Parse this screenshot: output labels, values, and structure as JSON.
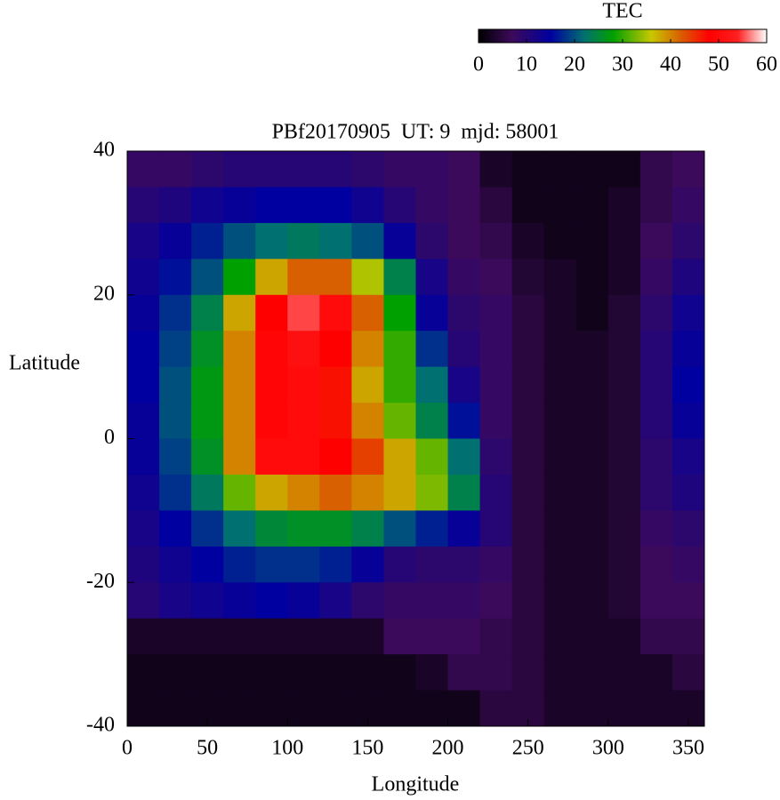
{
  "chart_data": {
    "type": "heatmap",
    "title": "PBf20170905  UT: 9  mjd: 58001",
    "x_label": "Longitude",
    "y_label": "Latitude",
    "colorbar_label": "TEC",
    "x": [
      10,
      30,
      50,
      70,
      90,
      110,
      130,
      150,
      170,
      190,
      210,
      230,
      250,
      270,
      290,
      310,
      330,
      350
    ],
    "y": [
      37.5,
      32.5,
      27.5,
      22.5,
      17.5,
      12.5,
      7.5,
      2.5,
      -2.5,
      -7.5,
      -12.5,
      -17.5,
      -22.5,
      -27.5,
      -32.5,
      -37.5
    ],
    "z": [
      [
        8,
        8,
        9,
        10,
        10,
        10,
        10,
        9,
        8,
        8,
        7,
        3,
        2,
        2,
        2,
        2,
        6,
        7
      ],
      [
        10,
        11,
        13,
        14,
        15,
        15,
        15,
        13,
        10,
        8,
        7,
        5,
        2,
        2,
        2,
        3,
        6,
        8
      ],
      [
        12,
        14,
        17,
        20,
        22,
        23,
        22,
        20,
        14,
        9,
        7,
        6,
        3,
        2,
        2,
        3,
        7,
        9
      ],
      [
        13,
        16,
        20,
        28,
        38,
        42,
        42,
        35,
        24,
        12,
        8,
        7,
        4,
        3,
        2,
        3,
        8,
        11
      ],
      [
        14,
        18,
        24,
        38,
        48,
        55,
        50,
        42,
        28,
        14,
        9,
        8,
        5,
        3,
        2,
        4,
        9,
        13
      ],
      [
        15,
        19,
        26,
        40,
        49,
        51,
        48,
        40,
        30,
        18,
        10,
        8,
        5,
        3,
        3,
        4,
        10,
        14
      ],
      [
        15,
        20,
        27,
        40,
        49,
        50,
        47,
        38,
        30,
        22,
        12,
        8,
        5,
        3,
        3,
        4,
        10,
        15
      ],
      [
        14,
        20,
        27,
        40,
        49,
        50,
        47,
        40,
        32,
        24,
        16,
        8,
        5,
        3,
        3,
        4,
        10,
        14
      ],
      [
        14,
        19,
        26,
        40,
        50,
        50,
        48,
        44,
        38,
        32,
        22,
        9,
        5,
        3,
        3,
        4,
        9,
        12
      ],
      [
        13,
        18,
        23,
        32,
        38,
        40,
        42,
        40,
        38,
        33,
        24,
        10,
        5,
        3,
        3,
        4,
        9,
        11
      ],
      [
        12,
        15,
        18,
        22,
        25,
        26,
        26,
        24,
        20,
        17,
        14,
        10,
        5,
        3,
        3,
        4,
        8,
        9
      ],
      [
        11,
        13,
        15,
        17,
        18,
        18,
        17,
        14,
        10,
        9,
        9,
        8,
        5,
        3,
        3,
        4,
        7,
        8
      ],
      [
        10,
        12,
        13,
        14,
        15,
        14,
        12,
        9,
        8,
        8,
        8,
        7,
        5,
        3,
        3,
        4,
        7,
        7
      ],
      [
        3,
        3,
        3,
        3,
        3,
        3,
        3,
        3,
        7,
        7,
        7,
        6,
        5,
        3,
        3,
        3,
        6,
        6
      ],
      [
        2,
        2,
        2,
        2,
        2,
        2,
        2,
        2,
        2,
        3,
        6,
        6,
        5,
        3,
        3,
        3,
        3,
        5
      ],
      [
        2,
        2,
        2,
        2,
        2,
        2,
        2,
        2,
        2,
        2,
        2,
        5,
        5,
        3,
        3,
        3,
        3,
        3
      ]
    ],
    "xlim": [
      0,
      360
    ],
    "xticks": [
      0,
      50,
      100,
      150,
      200,
      250,
      300,
      350
    ],
    "ylim": [
      -40,
      40
    ],
    "yticks": [
      -40,
      -20,
      0,
      20,
      40
    ],
    "colorbar_lim": [
      0,
      60
    ],
    "colorbar_ticks": [
      0,
      10,
      20,
      30,
      40,
      50,
      60
    ],
    "colorscale": [
      [
        0,
        "#000000"
      ],
      [
        7,
        "#3c0a5a"
      ],
      [
        15,
        "#0000a0"
      ],
      [
        22,
        "#007070"
      ],
      [
        28,
        "#00a000"
      ],
      [
        36,
        "#c8c800"
      ],
      [
        42,
        "#d86000"
      ],
      [
        48,
        "#ff0000"
      ],
      [
        54,
        "#ff2020"
      ],
      [
        60,
        "#ffffff"
      ]
    ]
  }
}
